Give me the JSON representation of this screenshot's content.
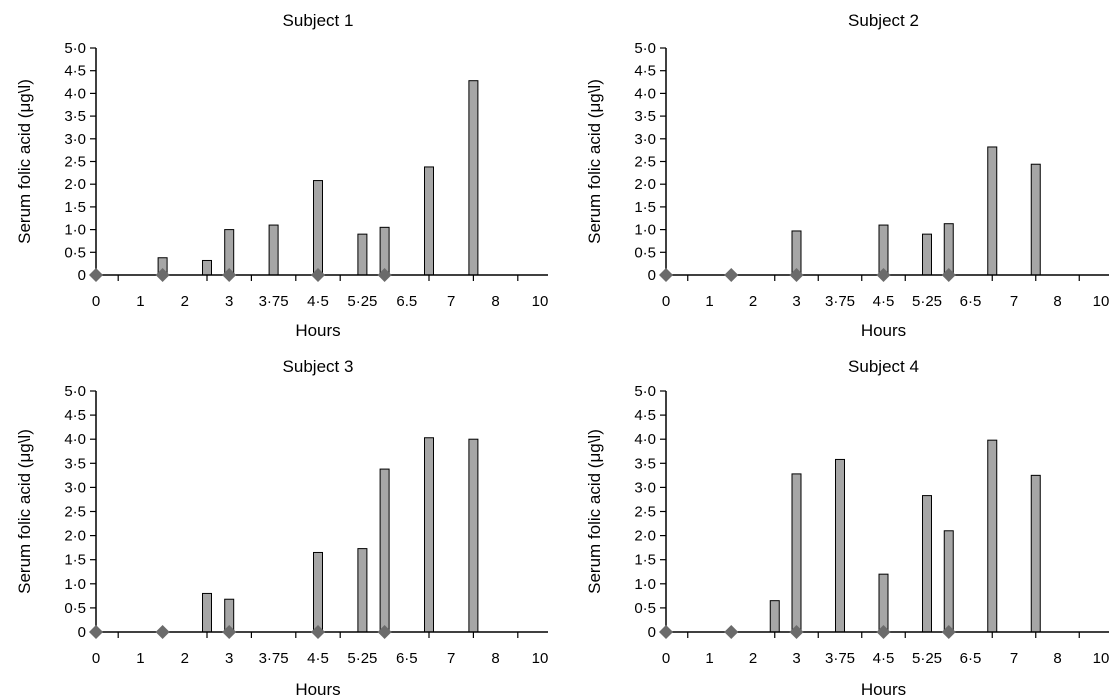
{
  "chart_data": [
    {
      "type": "bar",
      "title": "Subject 1",
      "xlabel": "Hours",
      "ylabel": "Serum folic acid (μg\\l)",
      "categories": [
        "0",
        "1",
        "2",
        "3",
        "3·75",
        "4·5",
        "5·25",
        "6.5",
        "7",
        "8",
        "10"
      ],
      "ylim": [
        0,
        5
      ],
      "yticks": [
        "0",
        "0·5",
        "1·0",
        "1·5",
        "2·0",
        "2·5",
        "3·0",
        "3·5",
        "4·0",
        "4·5",
        "5·0"
      ],
      "bars": [
        {
          "x": 1.5,
          "value": 0.38
        },
        {
          "x": 2.5,
          "value": 0.32
        },
        {
          "x": 3.0,
          "value": 1.0
        },
        {
          "x": 4.0,
          "value": 1.1
        },
        {
          "x": 5.0,
          "value": 2.08
        },
        {
          "x": 6.0,
          "value": 0.9
        },
        {
          "x": 6.5,
          "value": 1.05
        },
        {
          "x": 7.5,
          "value": 2.38
        },
        {
          "x": 8.5,
          "value": 4.28
        }
      ],
      "markers": [
        0,
        1.5,
        3.0,
        5.0,
        6.5
      ],
      "bar_color": "#a6a6a6",
      "marker_color": "#6b6b6b"
    },
    {
      "type": "bar",
      "title": "Subject 2",
      "xlabel": "Hours",
      "ylabel": "Serum folic acid (μg\\l)",
      "categories": [
        "0",
        "1",
        "2",
        "3",
        "3·75",
        "4·5",
        "5·25",
        "6·5",
        "7",
        "8",
        "10"
      ],
      "ylim": [
        0,
        5
      ],
      "yticks": [
        "0",
        "0·5",
        "1·0",
        "1·5",
        "2·0",
        "2·5",
        "3·0",
        "3·5",
        "4·0",
        "4·5",
        "5·0"
      ],
      "bars": [
        {
          "x": 3.0,
          "value": 0.97
        },
        {
          "x": 5.0,
          "value": 1.1
        },
        {
          "x": 6.0,
          "value": 0.9
        },
        {
          "x": 6.5,
          "value": 1.13
        },
        {
          "x": 7.5,
          "value": 2.82
        },
        {
          "x": 8.5,
          "value": 2.44
        }
      ],
      "markers": [
        0,
        1.5,
        3.0,
        5.0,
        6.5
      ],
      "bar_color": "#a6a6a6",
      "marker_color": "#6b6b6b"
    },
    {
      "type": "bar",
      "title": "Subject 3",
      "xlabel": "Hours",
      "ylabel": "Serum folic acid (μg\\l)",
      "categories": [
        "0",
        "1",
        "2",
        "3",
        "3·75",
        "4·5",
        "5·25",
        "6·5",
        "7",
        "8",
        "10"
      ],
      "ylim": [
        0,
        5
      ],
      "yticks": [
        "0",
        "0·5",
        "1·0",
        "1·5",
        "2·0",
        "2·5",
        "3·0",
        "3·5",
        "4·0",
        "4·5",
        "5·0"
      ],
      "bars": [
        {
          "x": 2.5,
          "value": 0.8
        },
        {
          "x": 3.0,
          "value": 0.68
        },
        {
          "x": 5.0,
          "value": 1.65
        },
        {
          "x": 6.0,
          "value": 1.73
        },
        {
          "x": 6.5,
          "value": 3.38
        },
        {
          "x": 7.5,
          "value": 4.03
        },
        {
          "x": 8.5,
          "value": 4.0
        }
      ],
      "markers": [
        0,
        1.5,
        3.0,
        5.0,
        6.5
      ],
      "bar_color": "#a6a6a6",
      "marker_color": "#6b6b6b"
    },
    {
      "type": "bar",
      "title": "Subject 4",
      "xlabel": "Hours",
      "ylabel": "Serum folic acid (μg\\l)",
      "categories": [
        "0",
        "1",
        "2",
        "3",
        "3·75",
        "4·5",
        "5·25",
        "6·5",
        "7",
        "8",
        "10"
      ],
      "ylim": [
        0,
        5
      ],
      "yticks": [
        "0",
        "0·5",
        "1·0",
        "1·5",
        "2·0",
        "2·5",
        "3·0",
        "3·5",
        "4·0",
        "4·5",
        "5·0"
      ],
      "bars": [
        {
          "x": 2.5,
          "value": 0.65
        },
        {
          "x": 3.0,
          "value": 3.28
        },
        {
          "x": 4.0,
          "value": 3.58
        },
        {
          "x": 5.0,
          "value": 1.2
        },
        {
          "x": 6.0,
          "value": 2.83
        },
        {
          "x": 6.5,
          "value": 2.1
        },
        {
          "x": 7.5,
          "value": 3.98
        },
        {
          "x": 8.5,
          "value": 3.25
        }
      ],
      "markers": [
        0,
        1.5,
        3.0,
        5.0,
        6.5
      ],
      "bar_color": "#a6a6a6",
      "marker_color": "#6b6b6b"
    }
  ]
}
